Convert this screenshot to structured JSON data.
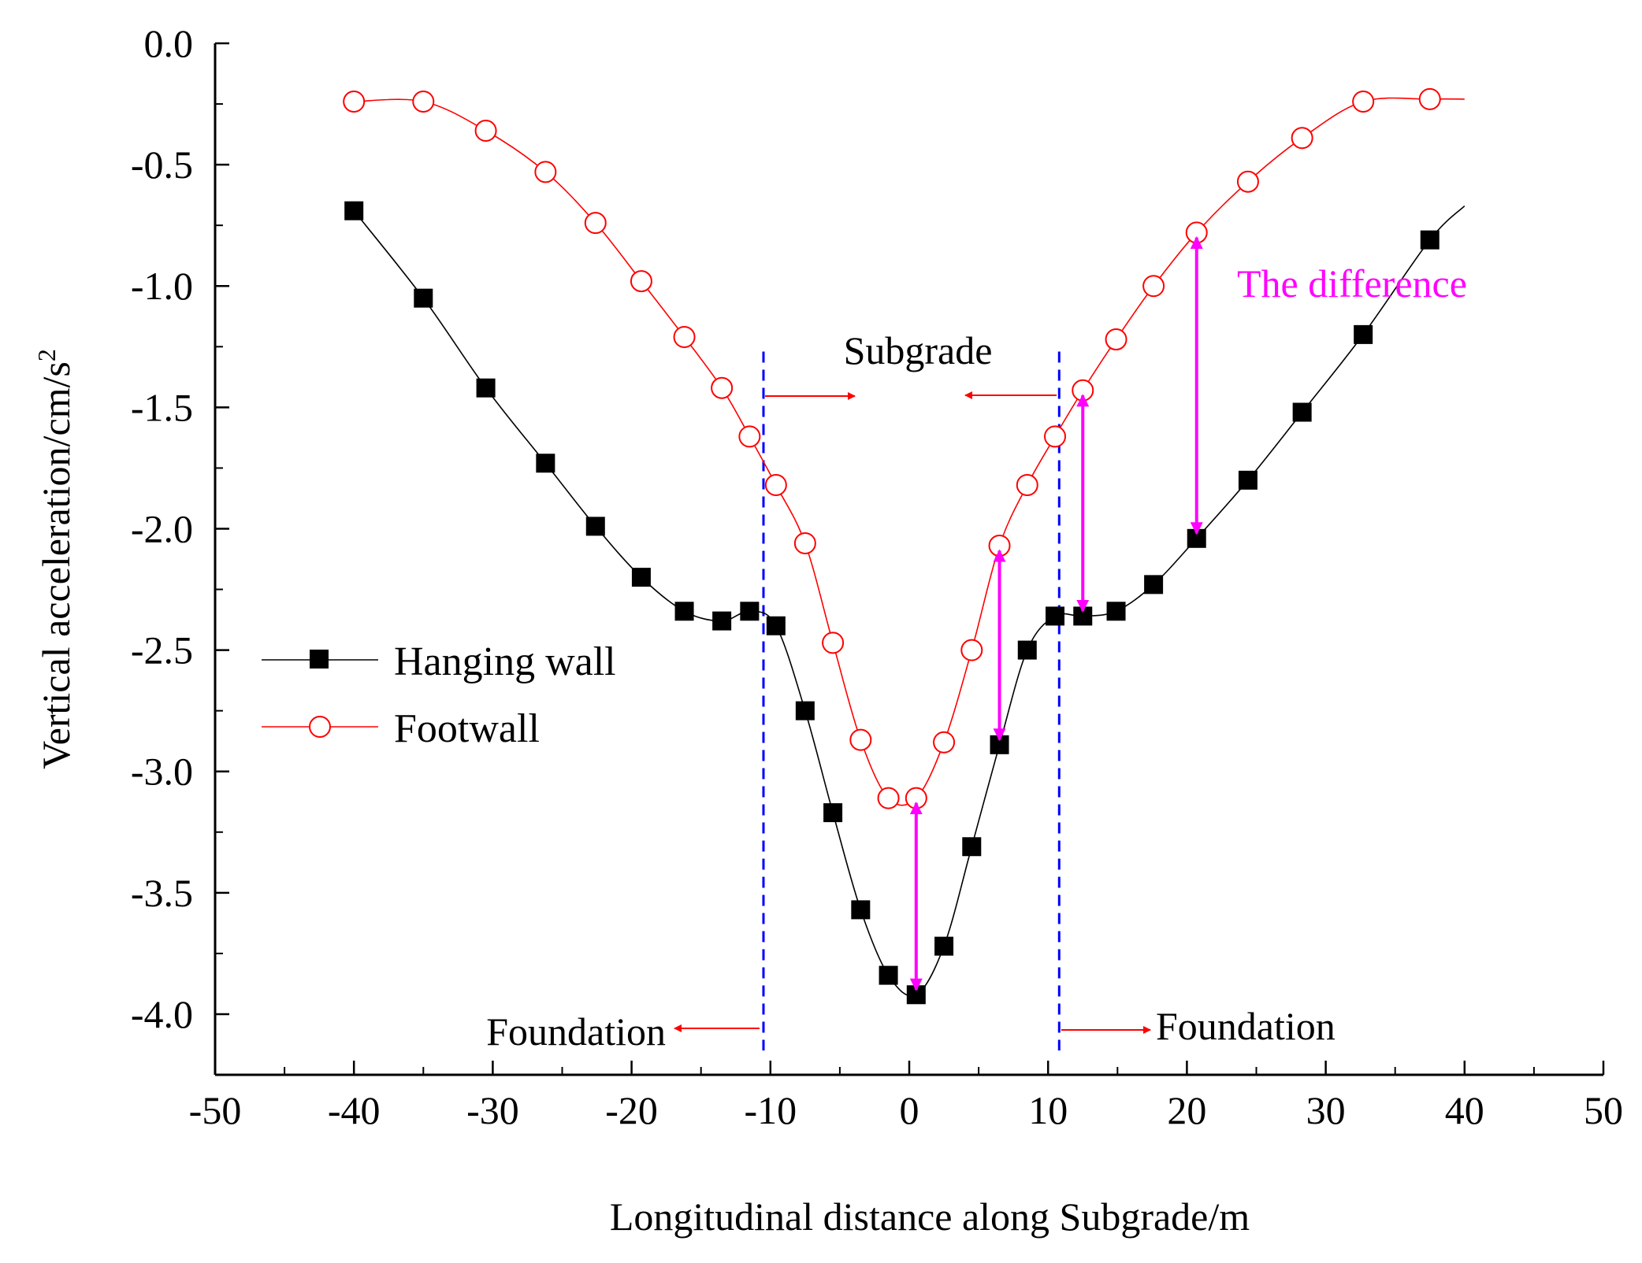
{
  "chart_data": {
    "type": "line",
    "xlabel": "Longitudinal distance along Subgrade/m",
    "ylabel_main": "Vertical acceleration/cm/s",
    "ylabel_sup": "2",
    "xlim": [
      -50,
      50
    ],
    "ylim": [
      -4.25,
      0
    ],
    "xticks": [
      -50,
      -40,
      -30,
      -20,
      -10,
      0,
      10,
      20,
      30,
      40,
      50
    ],
    "xtick_labels": [
      "-50",
      "-40",
      "-30",
      "-20",
      "-10",
      "0",
      "10",
      "20",
      "30",
      "40",
      "50"
    ],
    "yticks": [
      0,
      -0.5,
      -1,
      -1.5,
      -2,
      -2.5,
      -3,
      -3.5,
      -4
    ],
    "ytick_labels": [
      "0.0",
      "-0.5",
      "-1.0",
      "-1.5",
      "-2.0",
      "-2.5",
      "-3.0",
      "-3.5",
      "-4.0"
    ],
    "series": [
      {
        "name": "Hanging wall",
        "color": "#000000",
        "marker": "square",
        "x": [
          -40,
          -35,
          -30.5,
          -26.2,
          -22.6,
          -19.3,
          -16.2,
          -13.5,
          -11.5,
          -9.6,
          -7.5,
          -5.5,
          -3.5,
          -1.5,
          0.5,
          2.5,
          4.5,
          6.5,
          8.5,
          10.5,
          12.5,
          14.9,
          17.6,
          20.7,
          24.4,
          28.3,
          32.7,
          37.5
        ],
        "y": [
          -0.69,
          -1.05,
          -1.42,
          -1.73,
          -1.99,
          -2.2,
          -2.34,
          -2.38,
          -2.34,
          -2.4,
          -2.75,
          -3.17,
          -3.57,
          -3.84,
          -3.92,
          -3.72,
          -3.31,
          -2.89,
          -2.5,
          -2.36,
          -2.36,
          -2.34,
          -2.23,
          -2.04,
          -1.8,
          -1.52,
          -1.2,
          -0.81
        ],
        "line_end": [
          40.0,
          -0.67
        ]
      },
      {
        "name": "Footwall",
        "color": "#ff0000",
        "marker": "circle",
        "x": [
          -40,
          -35,
          -30.5,
          -26.2,
          -22.6,
          -19.3,
          -16.2,
          -13.5,
          -11.5,
          -9.6,
          -7.5,
          -5.5,
          -3.5,
          -1.5,
          0.5,
          2.5,
          4.5,
          6.5,
          8.5,
          10.5,
          12.5,
          14.9,
          17.6,
          20.7,
          24.4,
          28.3,
          32.7,
          37.5
        ],
        "y": [
          -0.24,
          -0.24,
          -0.36,
          -0.53,
          -0.74,
          -0.98,
          -1.21,
          -1.42,
          -1.62,
          -1.82,
          -2.06,
          -2.47,
          -2.87,
          -3.11,
          -3.11,
          -2.88,
          -2.5,
          -2.07,
          -1.82,
          -1.62,
          -1.43,
          -1.22,
          -1.0,
          -0.78,
          -0.57,
          -0.39,
          -0.24,
          -0.23
        ],
        "line_end": [
          40.0,
          -0.23
        ]
      }
    ],
    "vlines": [
      {
        "x": -10.5,
        "color": "#0000ff",
        "style": "dashed"
      },
      {
        "x": 10.8,
        "color": "#0000ff",
        "style": "dashed"
      }
    ],
    "difference_arrows": [
      {
        "x": 0.5,
        "y_top": -3.13,
        "y_bottom": -3.9
      },
      {
        "x": 6.5,
        "y_top": -2.09,
        "y_bottom": -2.87
      },
      {
        "x": 12.5,
        "y_top": -1.45,
        "y_bottom": -2.34
      },
      {
        "x": 20.7,
        "y_top": -0.8,
        "y_bottom": -2.02
      }
    ],
    "annotations": {
      "subgrade": "Subgrade",
      "foundation_left": "Foundation",
      "foundation_right": "Foundation",
      "difference": "The difference"
    },
    "legend": {
      "position": "middle-left",
      "hanging_wall": "Hanging wall",
      "footwall": "Footwall"
    }
  }
}
